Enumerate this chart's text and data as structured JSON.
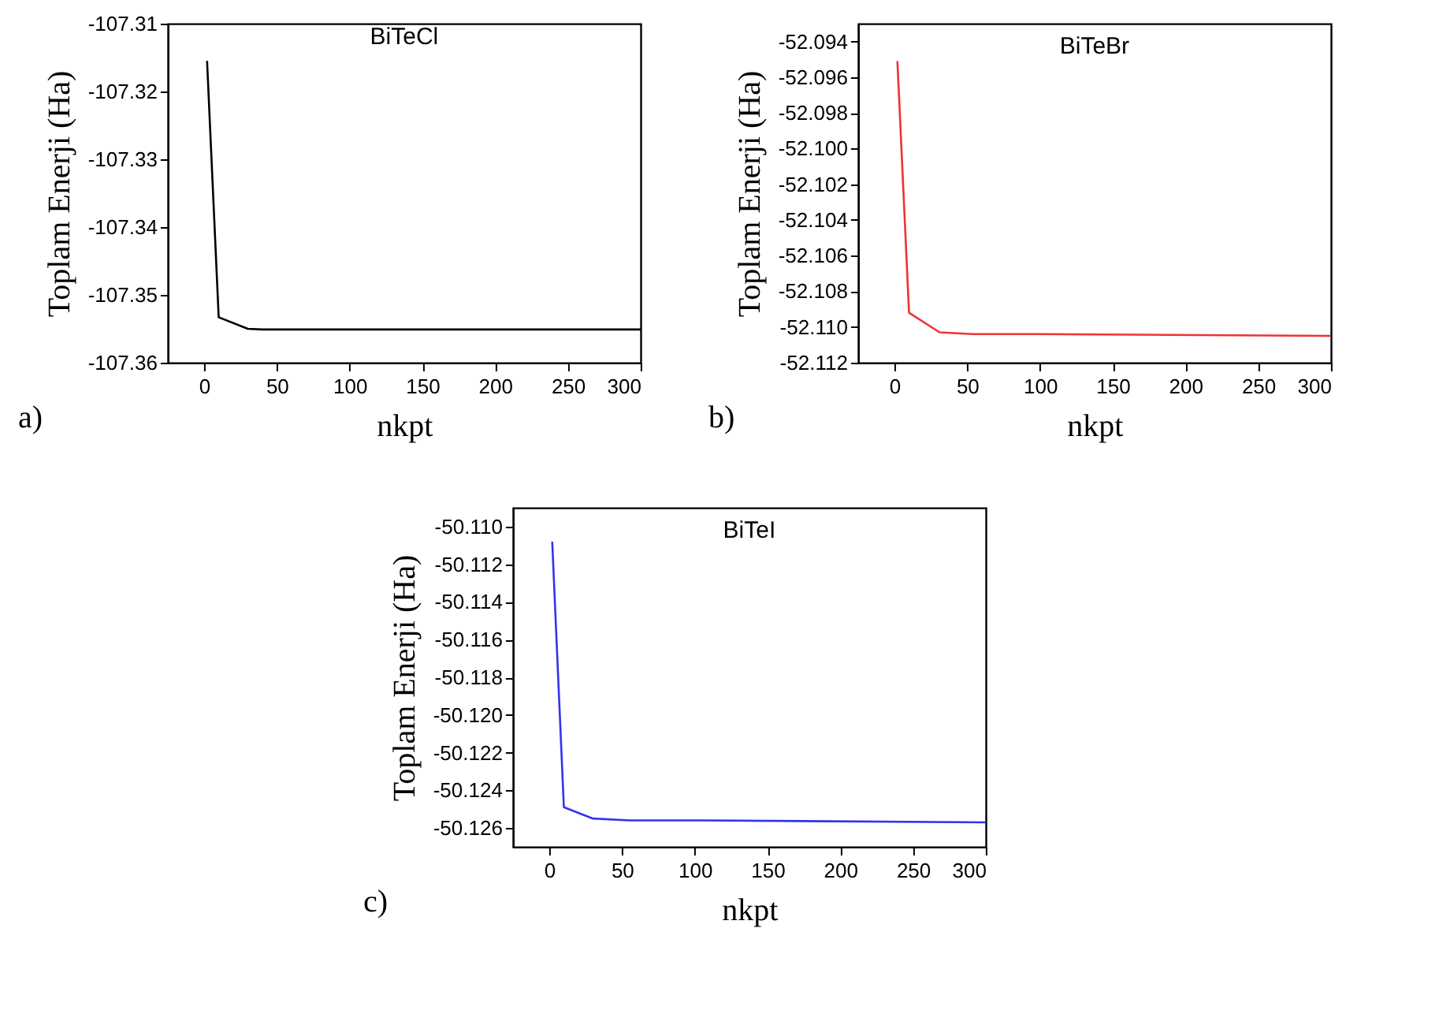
{
  "chart_data": [
    {
      "type": "line",
      "title": "BiTeCl",
      "xlabel": "nkpt",
      "ylabel": "Toplam Enerji (Ha)",
      "annotations": [
        "a)"
      ],
      "x": [
        2,
        10,
        30,
        40,
        300
      ],
      "values": [
        -107.3155,
        -107.3533,
        -107.355,
        -107.3551,
        -107.3551
      ],
      "color": "#000000",
      "xlim": [
        -25,
        300
      ],
      "ylim": [
        -107.36,
        -107.31
      ],
      "xticks": [
        0,
        50,
        100,
        150,
        200,
        250,
        300
      ],
      "yticks": [
        -107.36,
        -107.35,
        -107.34,
        -107.33,
        -107.32,
        -107.31
      ]
    },
    {
      "type": "line",
      "title": "BiTeBr",
      "xlabel": "nkpt",
      "ylabel": "Toplam Enerji (Ha)",
      "annotations": [
        "b)"
      ],
      "x": [
        2,
        10,
        31,
        54,
        100,
        300
      ],
      "values": [
        -52.0951,
        -52.1092,
        -52.1103,
        -52.1104,
        -52.1104,
        -52.1105
      ],
      "color": "#ee3333",
      "xlim": [
        -25,
        300
      ],
      "ylim": [
        -52.112,
        -52.093
      ],
      "xticks": [
        0,
        50,
        100,
        150,
        200,
        250,
        300
      ],
      "yticks": [
        {
          "value": -52.112,
          "label": "-52.112"
        },
        {
          "value": -52.11,
          "label": "-52.110"
        },
        {
          "value": -52.108,
          "label": "-52.108"
        },
        {
          "value": -52.106,
          "label": "-52.106"
        },
        {
          "value": -52.104,
          "label": "-52.104"
        },
        {
          "value": -52.102,
          "label": "-52.102"
        },
        {
          "value": -52.1,
          "label": "-52.100"
        },
        {
          "value": -52.098,
          "label": "-52.098"
        },
        {
          "value": -52.096,
          "label": "-52.096"
        },
        {
          "value": -52.094,
          "label": "-52.094"
        }
      ]
    },
    {
      "type": "line",
      "title": "BiTeI",
      "xlabel": "nkpt",
      "ylabel": "Toplam Enerji (Ha)",
      "annotations": [
        "c)"
      ],
      "x": [
        2,
        10,
        30,
        55,
        105,
        300
      ],
      "values": [
        -50.1108,
        -50.1249,
        -50.1255,
        -50.1256,
        -50.1256,
        -50.1257
      ],
      "color": "#3333ee",
      "xlim": [
        -25,
        300
      ],
      "ylim": [
        -50.127,
        -50.109
      ],
      "xticks": [
        0,
        50,
        100,
        150,
        200,
        250,
        300
      ],
      "yticks": [
        {
          "value": -50.126,
          "label": "-50.126"
        },
        {
          "value": -50.124,
          "label": "-50.124"
        },
        {
          "value": -50.122,
          "label": "-50.122"
        },
        {
          "value": -50.12,
          "label": "-50.120"
        },
        {
          "value": -50.118,
          "label": "-50.118"
        },
        {
          "value": -50.116,
          "label": "-50.116"
        },
        {
          "value": -50.114,
          "label": "-50.114"
        },
        {
          "value": -50.112,
          "label": "-50.112"
        },
        {
          "value": -50.11,
          "label": "-50.110"
        }
      ]
    }
  ]
}
